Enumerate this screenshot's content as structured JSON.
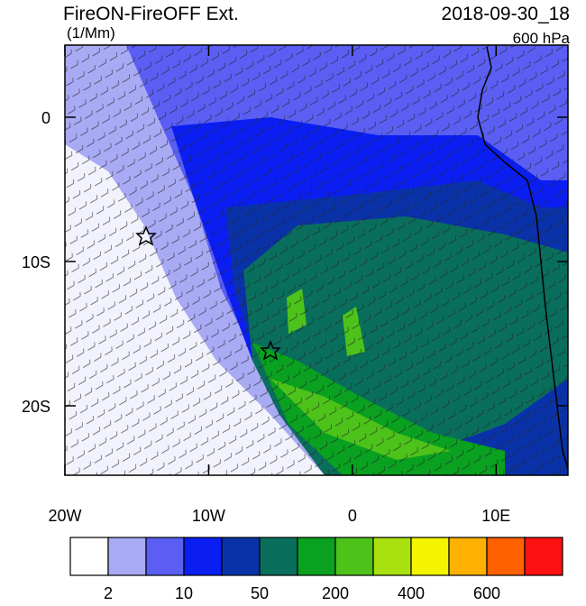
{
  "chart_data": {
    "type": "map",
    "title": "FireON-FireOFF Ext.",
    "date": "2018-09-30_18",
    "units": "(1/Mm)",
    "level": "600 hPa",
    "xlim": [
      -20,
      15
    ],
    "ylim": [
      -25,
      5
    ],
    "xticks": [
      {
        "value": -20,
        "label": "20W"
      },
      {
        "value": -10,
        "label": "10W"
      },
      0,
      {
        "value": 10,
        "label": "10E"
      }
    ],
    "yticks": [
      0,
      {
        "value": -10,
        "label": "10S"
      },
      {
        "value": -20,
        "label": "20S"
      }
    ],
    "colorbar": {
      "colors": [
        "#ffffff",
        "#a8aaf4",
        "#5a5ef2",
        "#0a1ef2",
        "#0a32a8",
        "#0a6e5c",
        "#0aa020",
        "#4cc21a",
        "#a8e010",
        "#f4f400",
        "#ffb000",
        "#ff6000",
        "#ff1010"
      ],
      "labels": [
        "2",
        "10",
        "50",
        "200",
        "400",
        "600"
      ]
    }
  }
}
